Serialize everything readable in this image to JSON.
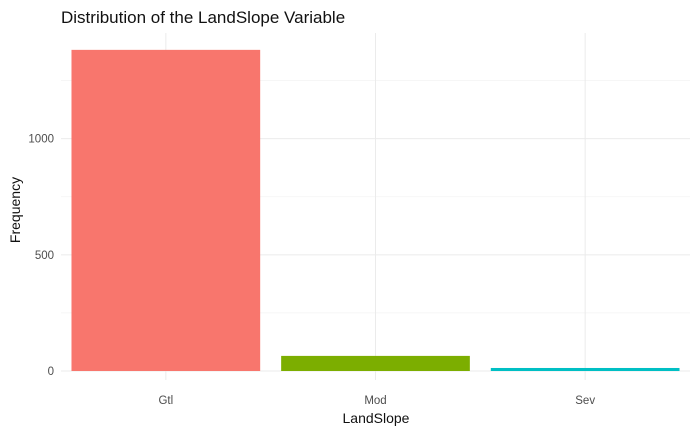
{
  "chart_data": {
    "type": "bar",
    "title": "Distribution of the LandSlope Variable",
    "xlabel": "LandSlope",
    "ylabel": "Frequency",
    "categories": [
      "Gtl",
      "Mod",
      "Sev"
    ],
    "values": [
      1382,
      65,
      13
    ],
    "colors": [
      "#F8766D",
      "#7CAE00",
      "#00BFC4"
    ],
    "ylim": [
      0,
      1400
    ],
    "yticks": [
      0,
      500,
      1000
    ],
    "ytick_labels": [
      "0",
      "500",
      "1000"
    ],
    "grid": true,
    "legend": "none"
  }
}
